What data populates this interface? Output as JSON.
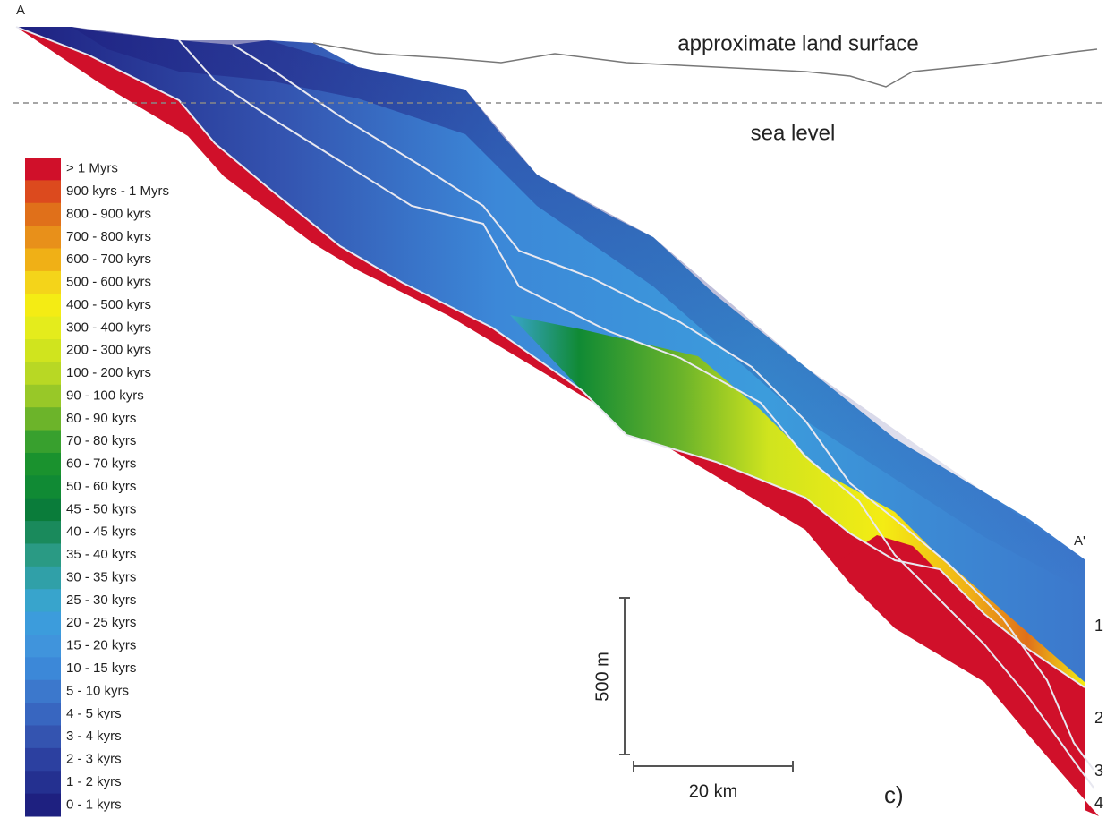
{
  "figure": {
    "end_left": "A",
    "end_right": "A'",
    "land_surface_label": "approximate land surface",
    "sea_level_label": "sea level",
    "vertical_scale": "500 m",
    "horizontal_scale": "20 km",
    "panel_label": "c)",
    "unit_labels": [
      "1",
      "2",
      "3",
      "4"
    ],
    "legend": [
      {
        "label": "> 1 Myrs",
        "color": "#d0102a"
      },
      {
        "label": "900 kyrs - 1 Myrs",
        "color": "#dc4a1e"
      },
      {
        "label": "800 - 900 kyrs",
        "color": "#e0701a"
      },
      {
        "label": "700 - 800 kyrs",
        "color": "#e8901a"
      },
      {
        "label": "600 - 700 kyrs",
        "color": "#f0b016"
      },
      {
        "label": "500 - 600 kyrs",
        "color": "#f4d41a"
      },
      {
        "label": "400 - 500 kyrs",
        "color": "#f4ec14"
      },
      {
        "label": "300 - 400 kyrs",
        "color": "#e4ec1c"
      },
      {
        "label": "200 - 300 kyrs",
        "color": "#d0e41e"
      },
      {
        "label": "100 - 200 kyrs",
        "color": "#b8d824"
      },
      {
        "label": "90 - 100 kyrs",
        "color": "#98c828"
      },
      {
        "label": "80 - 90 kyrs",
        "color": "#6cb42a"
      },
      {
        "label": "70 - 80 kyrs",
        "color": "#38a02e"
      },
      {
        "label": "60 - 70 kyrs",
        "color": "#1a922e"
      },
      {
        "label": "50 - 60 kyrs",
        "color": "#108a34"
      },
      {
        "label": "45 - 50 kyrs",
        "color": "#0a7c3a"
      },
      {
        "label": "40 - 45 kyrs",
        "color": "#1a8a5c"
      },
      {
        "label": "35 - 40 kyrs",
        "color": "#2a9a84"
      },
      {
        "label": "30 - 35 kyrs",
        "color": "#30a0a8"
      },
      {
        "label": "25 - 30 kyrs",
        "color": "#38a4cc"
      },
      {
        "label": "20 - 25 kyrs",
        "color": "#3c9cdc"
      },
      {
        "label": "15 - 20 kyrs",
        "color": "#4094dc"
      },
      {
        "label": "10 - 15 kyrs",
        "color": "#3c88d8"
      },
      {
        "label": "5 - 10 kyrs",
        "color": "#3c78cc"
      },
      {
        "label": "4 - 5 kyrs",
        "color": "#3866c0"
      },
      {
        "label": "3 - 4 kyrs",
        "color": "#3454b0"
      },
      {
        "label": "2 - 3 kyrs",
        "color": "#2c40a0"
      },
      {
        "label": "1 - 2 kyrs",
        "color": "#243090"
      },
      {
        "label": "0 - 1 kyrs",
        "color": "#1e2080"
      }
    ]
  }
}
